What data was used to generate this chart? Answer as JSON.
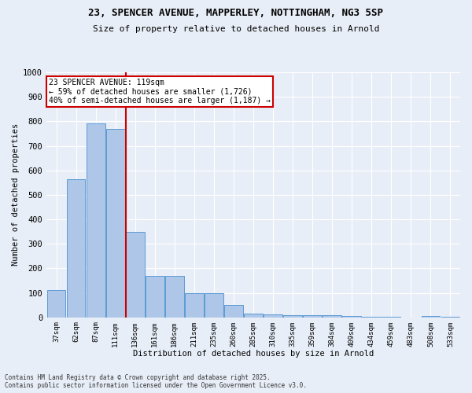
{
  "title1": "23, SPENCER AVENUE, MAPPERLEY, NOTTINGHAM, NG3 5SP",
  "title2": "Size of property relative to detached houses in Arnold",
  "xlabel": "Distribution of detached houses by size in Arnold",
  "ylabel": "Number of detached properties",
  "categories": [
    "37sqm",
    "62sqm",
    "87sqm",
    "111sqm",
    "136sqm",
    "161sqm",
    "186sqm",
    "211sqm",
    "235sqm",
    "260sqm",
    "285sqm",
    "310sqm",
    "335sqm",
    "359sqm",
    "384sqm",
    "409sqm",
    "434sqm",
    "459sqm",
    "483sqm",
    "508sqm",
    "533sqm"
  ],
  "values": [
    110,
    565,
    790,
    770,
    348,
    168,
    168,
    97,
    97,
    52,
    15,
    13,
    8,
    8,
    8,
    5,
    2,
    2,
    0,
    5,
    3
  ],
  "bar_color": "#aec6e8",
  "bar_edge_color": "#5b9bd5",
  "vline_color": "#cc0000",
  "vline_pos": 3.55,
  "annotation_text": "23 SPENCER AVENUE: 119sqm\n← 59% of detached houses are smaller (1,726)\n40% of semi-detached houses are larger (1,187) →",
  "annotation_box_color": "#ffffff",
  "annotation_box_edge": "#cc0000",
  "ylim": [
    0,
    1000
  ],
  "yticks": [
    0,
    100,
    200,
    300,
    400,
    500,
    600,
    700,
    800,
    900,
    1000
  ],
  "background_color": "#e8eef7",
  "grid_color": "#ffffff",
  "footer1": "Contains HM Land Registry data © Crown copyright and database right 2025.",
  "footer2": "Contains public sector information licensed under the Open Government Licence v3.0."
}
